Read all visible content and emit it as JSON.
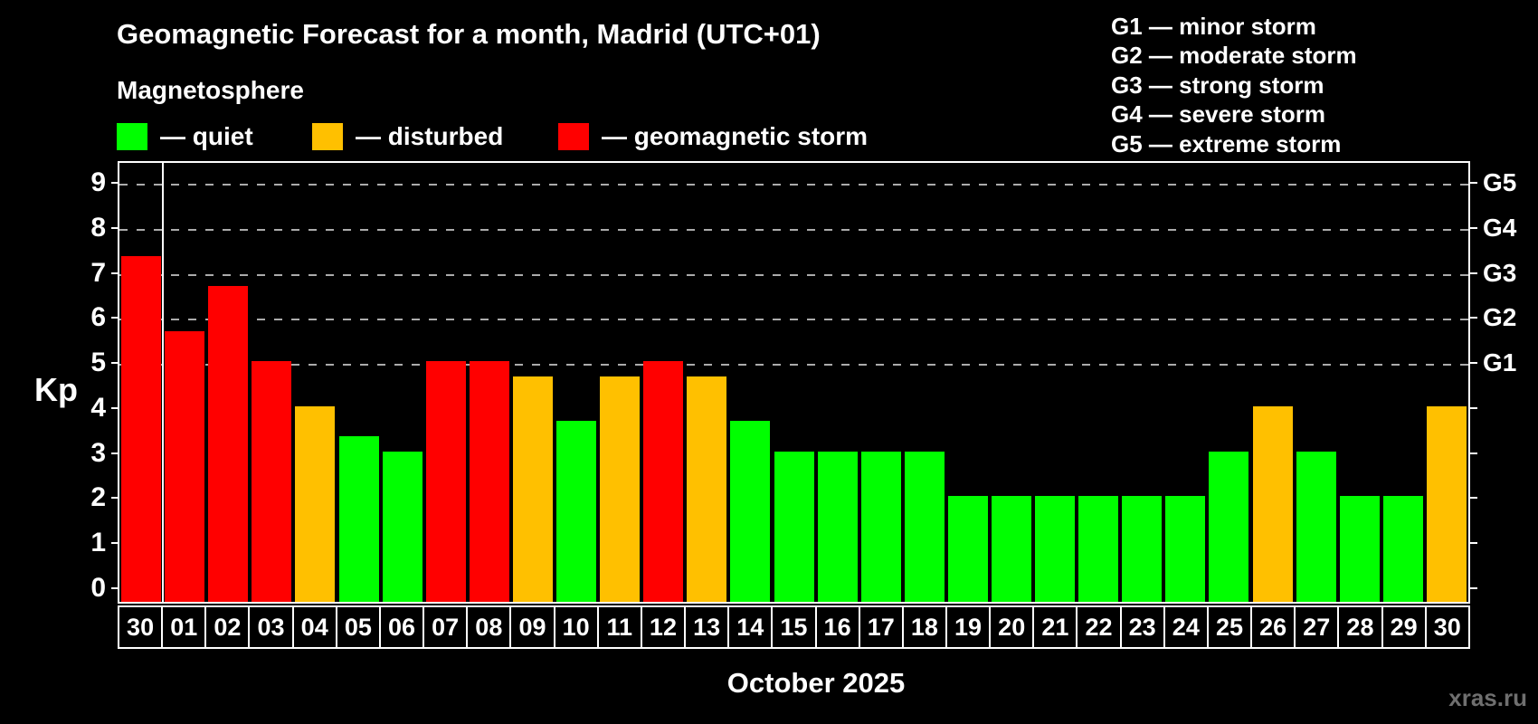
{
  "title": "Geomagnetic Forecast for a month, Madrid (UTC+01)",
  "subtitle": "Magnetosphere",
  "status_legend": [
    {
      "label": "— quiet",
      "status": "quiet"
    },
    {
      "label": "— disturbed",
      "status": "disturbed"
    },
    {
      "label": "— geomagnetic storm",
      "status": "storm"
    }
  ],
  "g_legend": [
    "G1 — minor storm",
    "G2 — moderate storm",
    "G3 — strong storm",
    "G4 — severe storm",
    "G5 — extreme storm"
  ],
  "axes": {
    "kp_label": "Kp",
    "left_ticks": [
      "0",
      "1",
      "2",
      "3",
      "4",
      "5",
      "6",
      "7",
      "8",
      "9"
    ],
    "right_g_labels": [
      "G1",
      "G2",
      "G3",
      "G4",
      "G5"
    ],
    "x_title": "October 2025"
  },
  "watermark": "xras.ru",
  "colors": {
    "quiet": "#00ff00",
    "disturbed": "#ffc000",
    "storm": "#ff0000",
    "grid": "#ababab",
    "watermark": "#6f6f6f"
  },
  "chart_data": {
    "type": "bar",
    "title": "Geomagnetic Forecast for a month, Madrid (UTC+01)",
    "xlabel": "October 2025",
    "ylabel": "Kp",
    "ylim": [
      0,
      9.4
    ],
    "grid": "dashed horizontal lines at Kp 5,6,7,8,9 only",
    "legend_position": "top-left statuses, top-right G scale",
    "g_scale_map": {
      "G1": 5,
      "G2": 6,
      "G3": 7,
      "G4": 8,
      "G5": 9
    },
    "month_boundary_after_index": 0,
    "categories": [
      "30",
      "01",
      "02",
      "03",
      "04",
      "05",
      "06",
      "07",
      "08",
      "09",
      "10",
      "11",
      "12",
      "13",
      "14",
      "15",
      "16",
      "17",
      "18",
      "19",
      "20",
      "21",
      "22",
      "23",
      "24",
      "25",
      "26",
      "27",
      "28",
      "29",
      "30"
    ],
    "values": [
      7.33,
      5.67,
      6.67,
      5,
      4,
      3.33,
      3,
      5,
      5,
      4.67,
      3.67,
      4.67,
      5,
      4.67,
      3.67,
      3,
      3,
      3,
      3,
      2,
      2,
      2,
      2,
      2,
      2,
      3,
      4,
      3,
      2,
      2,
      4
    ],
    "statuses": [
      "storm",
      "storm",
      "storm",
      "storm",
      "disturbed",
      "quiet",
      "quiet",
      "storm",
      "storm",
      "disturbed",
      "quiet",
      "disturbed",
      "storm",
      "disturbed",
      "quiet",
      "quiet",
      "quiet",
      "quiet",
      "quiet",
      "quiet",
      "quiet",
      "quiet",
      "quiet",
      "quiet",
      "quiet",
      "quiet",
      "disturbed",
      "quiet",
      "quiet",
      "quiet",
      "disturbed"
    ]
  }
}
